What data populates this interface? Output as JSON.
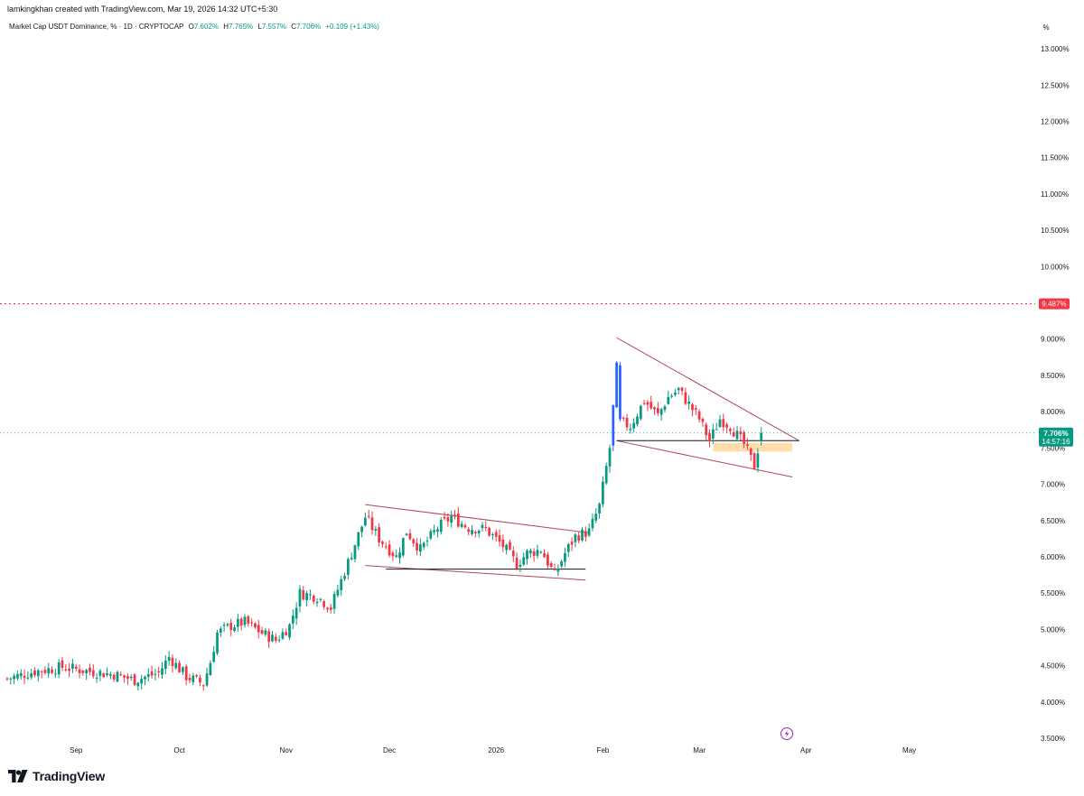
{
  "header": {
    "credit": "lamkingkhan created with TradingView.com, Mar 19, 2026 14:32 UTC+5:30",
    "symbol": "Market Cap USDT Dominance, % · 1D · CRYPTOCAP",
    "open_label": "O",
    "open_value": "7.602%",
    "high_label": "H",
    "high_value": "7.765%",
    "low_label": "L",
    "low_value": "7.557%",
    "close_label": "C",
    "close_value": "7.706%",
    "change_value": "+0.109 (+1.43%)"
  },
  "footer": {
    "brand": "TradingView"
  },
  "colors": {
    "up": "#089981",
    "down": "#f23645",
    "impulse": "#2962ff",
    "trendline": "#b2475e",
    "zone": "#ffcc80"
  },
  "chart_data": {
    "type": "candlestick",
    "title": "",
    "y_unit_label": "%",
    "ylim": [
      3.5,
      13.2
    ],
    "y_ticks": [
      "13.000%",
      "12.500%",
      "12.000%",
      "11.500%",
      "11.000%",
      "10.500%",
      "10.000%",
      "9.000%",
      "8.500%",
      "8.000%",
      "7.500%",
      "7.000%",
      "6.500%",
      "6.000%",
      "5.500%",
      "5.000%",
      "4.500%",
      "4.000%",
      "3.500%"
    ],
    "x_ticks": [
      {
        "label": "Sep",
        "date": "2025-09-01"
      },
      {
        "label": "Oct",
        "date": "2025-10-01"
      },
      {
        "label": "Nov",
        "date": "2025-11-01"
      },
      {
        "label": "Dec",
        "date": "2025-12-01"
      },
      {
        "label": "2026",
        "date": "2026-01-01"
      },
      {
        "label": "Feb",
        "date": "2026-02-01"
      },
      {
        "label": "Mar",
        "date": "2026-03-01"
      },
      {
        "label": "Apr",
        "date": "2026-04-01"
      },
      {
        "label": "May",
        "date": "2026-05-01"
      }
    ],
    "x_range": [
      "2025-08-12",
      "2026-06-05"
    ],
    "last_price_label": "7.706%",
    "last_price_value": 7.706,
    "countdown_label": "14:57:16",
    "alert_line_label": "9.487%",
    "alert_line_value": 9.487,
    "close_path": [
      [
        "2025-08-12",
        4.32
      ],
      [
        "2025-08-20",
        4.42
      ],
      [
        "2025-08-28",
        4.48
      ],
      [
        "2025-09-05",
        4.42
      ],
      [
        "2025-09-12",
        4.38
      ],
      [
        "2025-09-18",
        4.3
      ],
      [
        "2025-09-25",
        4.4
      ],
      [
        "2025-09-28",
        4.62
      ],
      [
        "2025-10-03",
        4.35
      ],
      [
        "2025-10-08",
        4.25
      ],
      [
        "2025-10-10",
        4.55
      ],
      [
        "2025-10-12",
        4.95
      ],
      [
        "2025-10-16",
        5.05
      ],
      [
        "2025-10-20",
        5.1
      ],
      [
        "2025-10-25",
        4.95
      ],
      [
        "2025-10-29",
        4.85
      ],
      [
        "2025-11-02",
        5.05
      ],
      [
        "2025-11-05",
        5.5
      ],
      [
        "2025-11-10",
        5.45
      ],
      [
        "2025-11-14",
        5.3
      ],
      [
        "2025-11-18",
        5.8
      ],
      [
        "2025-11-22",
        6.3
      ],
      [
        "2025-11-24",
        6.55
      ],
      [
        "2025-11-28",
        6.25
      ],
      [
        "2025-12-03",
        6.0
      ],
      [
        "2025-12-06",
        6.35
      ],
      [
        "2025-12-10",
        6.1
      ],
      [
        "2025-12-15",
        6.4
      ],
      [
        "2025-12-19",
        6.55
      ],
      [
        "2025-12-24",
        6.4
      ],
      [
        "2025-12-29",
        6.38
      ],
      [
        "2026-01-03",
        6.15
      ],
      [
        "2026-01-07",
        5.9
      ],
      [
        "2026-01-10",
        6.05
      ],
      [
        "2026-01-14",
        6.1
      ],
      [
        "2026-01-18",
        5.75
      ],
      [
        "2026-01-21",
        6.05
      ],
      [
        "2026-01-24",
        6.28
      ],
      [
        "2026-01-28",
        6.35
      ],
      [
        "2026-01-31",
        6.7
      ],
      [
        "2026-02-03",
        7.5
      ],
      [
        "2026-02-05",
        8.6
      ],
      [
        "2026-02-06",
        7.85
      ],
      [
        "2026-02-09",
        7.8
      ],
      [
        "2026-02-13",
        8.15
      ],
      [
        "2026-02-17",
        7.95
      ],
      [
        "2026-02-20",
        8.2
      ],
      [
        "2026-02-23",
        8.3
      ],
      [
        "2026-02-26",
        8.1
      ],
      [
        "2026-03-01",
        7.9
      ],
      [
        "2026-03-04",
        7.6
      ],
      [
        "2026-03-07",
        7.9
      ],
      [
        "2026-03-10",
        7.8
      ],
      [
        "2026-03-14",
        7.55
      ],
      [
        "2026-03-17",
        7.25
      ],
      [
        "2026-03-19",
        7.706
      ]
    ],
    "annotations": [
      {
        "type": "trendline",
        "from": [
          "2025-11-24",
          6.72
        ],
        "to": [
          "2026-01-28",
          6.33
        ]
      },
      {
        "type": "trendline",
        "from": [
          "2025-11-24",
          5.88
        ],
        "to": [
          "2026-01-27",
          5.68
        ]
      },
      {
        "type": "horizontal",
        "from": [
          "2025-11-30",
          5.83
        ],
        "to": [
          "2026-01-27",
          5.83
        ]
      },
      {
        "type": "trendline",
        "from": [
          "2026-02-05",
          9.02
        ],
        "to": [
          "2026-03-30",
          7.6
        ]
      },
      {
        "type": "trendline",
        "from": [
          "2026-02-05",
          7.6
        ],
        "to": [
          "2026-03-28",
          7.1
        ]
      },
      {
        "type": "horizontal",
        "from": [
          "2026-02-05",
          7.6
        ],
        "to": [
          "2026-03-30",
          7.6
        ]
      },
      {
        "type": "zone",
        "from": [
          "2026-03-05",
          7.57
        ],
        "to": [
          "2026-03-28",
          7.45
        ]
      }
    ]
  }
}
